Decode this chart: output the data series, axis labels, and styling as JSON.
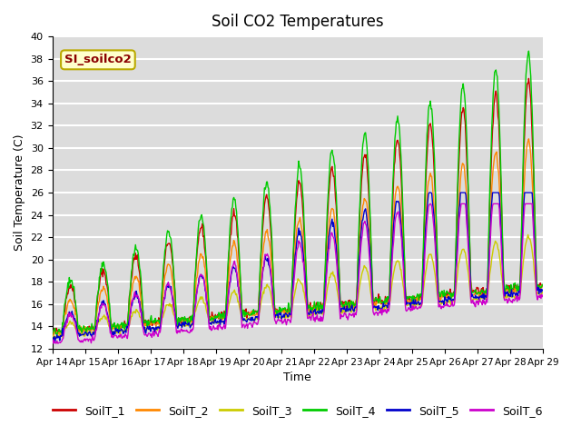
{
  "title": "Soil CO2 Temperatures",
  "xlabel": "Time",
  "ylabel": "Soil Temperature (C)",
  "ylim": [
    12,
    40
  ],
  "yticks": [
    12,
    14,
    16,
    18,
    20,
    22,
    24,
    26,
    28,
    30,
    32,
    34,
    36,
    38,
    40
  ],
  "annotation_text": "SI_soilco2",
  "annotation_bg": "#ffffcc",
  "annotation_border": "#bbaa00",
  "annotation_text_color": "#8b0000",
  "bg_color": "#dcdcdc",
  "grid_color": "#ffffff",
  "series_colors": [
    "#cc0000",
    "#ff8800",
    "#cccc00",
    "#00cc00",
    "#0000cc",
    "#cc00cc"
  ],
  "series_labels": [
    "SoilT_1",
    "SoilT_2",
    "SoilT_3",
    "SoilT_4",
    "SoilT_5",
    "SoilT_6"
  ],
  "xtick_labels": [
    "Apr 14",
    "Apr 15",
    "Apr 16",
    "Apr 17",
    "Apr 18",
    "Apr 19",
    "Apr 20",
    "Apr 21",
    "Apr 22",
    "Apr 23",
    "Apr 24",
    "Apr 25",
    "Apr 26",
    "Apr 27",
    "Apr 28",
    "Apr 29"
  ],
  "n_days": 15,
  "points_per_day": 48
}
